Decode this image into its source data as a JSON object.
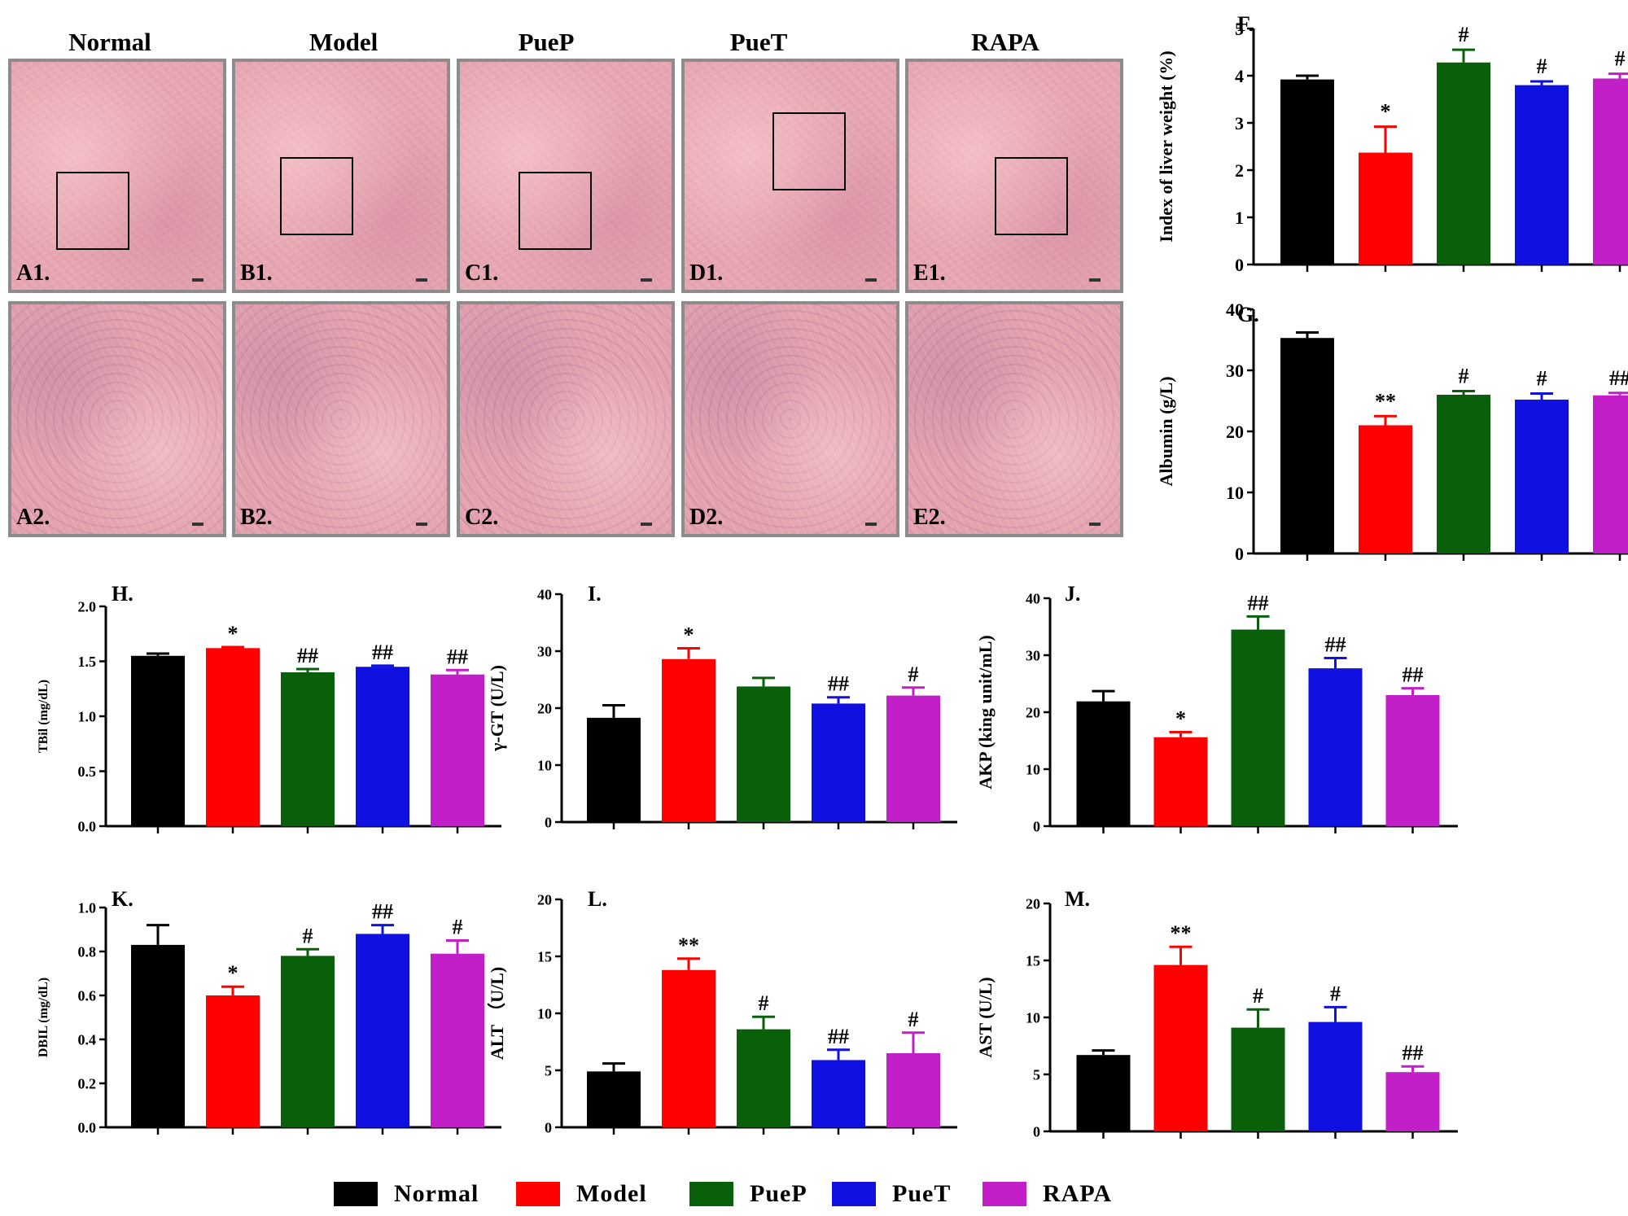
{
  "colors": {
    "Normal": "#000000",
    "Model": "#ff0000",
    "PueP": "#0a5f0a",
    "PueT": "#1010e0",
    "RAPA": "#c21fc9"
  },
  "histology": {
    "headers": [
      "Normal",
      "Model",
      "PueP",
      "PueT",
      "RAPA"
    ],
    "row1": [
      "A1.",
      "B1.",
      "C1.",
      "D1.",
      "E1."
    ],
    "row2": [
      "A2.",
      "B2.",
      "C2.",
      "D2.",
      "E2."
    ]
  },
  "legend": [
    "Normal",
    "Model",
    "PueP",
    "PueT",
    "RAPA"
  ],
  "chart_data": [
    {
      "id": "F",
      "type": "bar",
      "title": "F.",
      "ylabel": "Index of liver weight (%)",
      "categories": [
        "Normal",
        "Model",
        "PueP",
        "PueT",
        "RAPA"
      ],
      "values": [
        3.92,
        2.37,
        4.28,
        3.8,
        3.94
      ],
      "errors": [
        0.08,
        0.55,
        0.27,
        0.08,
        0.1
      ],
      "annotations": [
        "",
        "*",
        "#",
        "#",
        "#"
      ],
      "ylim": [
        0,
        5
      ],
      "yticks": [
        0,
        1,
        2,
        3,
        4,
        5
      ],
      "yticklabels": [
        "0",
        "1",
        "2",
        "3",
        "4",
        "5"
      ]
    },
    {
      "id": "G",
      "type": "bar",
      "title": "G.",
      "ylabel": "Albumin (g/L)",
      "categories": [
        "Normal",
        "Model",
        "PueP",
        "PueT",
        "RAPA"
      ],
      "values": [
        35.3,
        21.0,
        26.0,
        25.2,
        25.9
      ],
      "errors": [
        0.9,
        1.5,
        0.6,
        1.0,
        0.4
      ],
      "annotations": [
        "",
        "**",
        "#",
        "#",
        "##"
      ],
      "ylim": [
        0,
        40
      ],
      "yticks": [
        0,
        10,
        20,
        30,
        40
      ],
      "yticklabels": [
        "0",
        "10",
        "20",
        "30",
        "40"
      ]
    },
    {
      "id": "H",
      "type": "bar",
      "title": "H.",
      "ylabel": "TBil (mg/dL)",
      "categories": [
        "Normal",
        "Model",
        "PueP",
        "PueT",
        "RAPA"
      ],
      "values": [
        1.55,
        1.62,
        1.4,
        1.45,
        1.38
      ],
      "errors": [
        0.02,
        0.01,
        0.03,
        0.01,
        0.04
      ],
      "annotations": [
        "",
        "*",
        "##",
        "##",
        "##"
      ],
      "ylim": [
        0,
        2
      ],
      "yticks": [
        0,
        0.5,
        1,
        1.5,
        2
      ],
      "yticklabels": [
        "0.0",
        "0.5",
        "1.0",
        "1.5",
        "2.0"
      ]
    },
    {
      "id": "I",
      "type": "bar",
      "title": "I.",
      "ylabel": "γ-GT (U/L)",
      "categories": [
        "Normal",
        "Model",
        "PueP",
        "PueT",
        "RAPA"
      ],
      "values": [
        18.3,
        28.6,
        23.8,
        20.8,
        22.2
      ],
      "errors": [
        2.2,
        1.9,
        1.5,
        1.1,
        1.4
      ],
      "annotations": [
        "",
        "*",
        "",
        "##",
        "#"
      ],
      "ylim": [
        0,
        40
      ],
      "yticks": [
        0,
        10,
        20,
        30,
        40
      ],
      "yticklabels": [
        "0",
        "10",
        "20",
        "30",
        "40"
      ]
    },
    {
      "id": "J",
      "type": "bar",
      "title": "J.",
      "ylabel": "AKP (king unit/mL)",
      "categories": [
        "Normal",
        "Model",
        "PueP",
        "PueT",
        "RAPA"
      ],
      "values": [
        21.9,
        15.6,
        34.5,
        27.7,
        23.0
      ],
      "errors": [
        1.8,
        0.9,
        2.3,
        1.8,
        1.2
      ],
      "annotations": [
        "",
        "*",
        "##",
        "##",
        "##"
      ],
      "ylim": [
        0,
        40
      ],
      "yticks": [
        0,
        10,
        20,
        30,
        40
      ],
      "yticklabels": [
        "0",
        "10",
        "20",
        "30",
        "40"
      ]
    },
    {
      "id": "K",
      "type": "bar",
      "title": "K.",
      "ylabel": "DBIL (mg/dL)",
      "categories": [
        "Normal",
        "Model",
        "PueP",
        "PueT",
        "RAPA"
      ],
      "values": [
        0.83,
        0.6,
        0.78,
        0.88,
        0.79
      ],
      "errors": [
        0.09,
        0.04,
        0.03,
        0.04,
        0.06
      ],
      "annotations": [
        "",
        "*",
        "#",
        "##",
        "#"
      ],
      "ylim": [
        0,
        1
      ],
      "yticks": [
        0,
        0.2,
        0.4,
        0.6,
        0.8,
        1
      ],
      "yticklabels": [
        "0.0",
        "0.2",
        "0.4",
        "0.6",
        "0.8",
        "1.0"
      ]
    },
    {
      "id": "L",
      "type": "bar",
      "title": "L.",
      "ylabel": "ALT （U/L)",
      "categories": [
        "Normal",
        "Model",
        "PueP",
        "PueT",
        "RAPA"
      ],
      "values": [
        4.9,
        13.8,
        8.6,
        5.9,
        6.5
      ],
      "errors": [
        0.7,
        1.0,
        1.1,
        0.9,
        1.8
      ],
      "annotations": [
        "",
        "**",
        "#",
        "##",
        "#"
      ],
      "ylim": [
        0,
        20
      ],
      "yticks": [
        0,
        5,
        10,
        15,
        20
      ],
      "yticklabels": [
        "0",
        "5",
        "10",
        "15",
        "20"
      ]
    },
    {
      "id": "M",
      "type": "bar",
      "title": "M.",
      "ylabel": "AST (U/L)",
      "categories": [
        "Normal",
        "Model",
        "PueP",
        "PueT",
        "RAPA"
      ],
      "values": [
        6.7,
        14.6,
        9.1,
        9.6,
        5.2
      ],
      "errors": [
        0.4,
        1.6,
        1.6,
        1.3,
        0.5
      ],
      "annotations": [
        "",
        "**",
        "#",
        "#",
        "##"
      ],
      "ylim": [
        0,
        20
      ],
      "yticks": [
        0,
        5,
        10,
        15,
        20
      ],
      "yticklabels": [
        "0",
        "5",
        "10",
        "15",
        "20"
      ]
    }
  ]
}
